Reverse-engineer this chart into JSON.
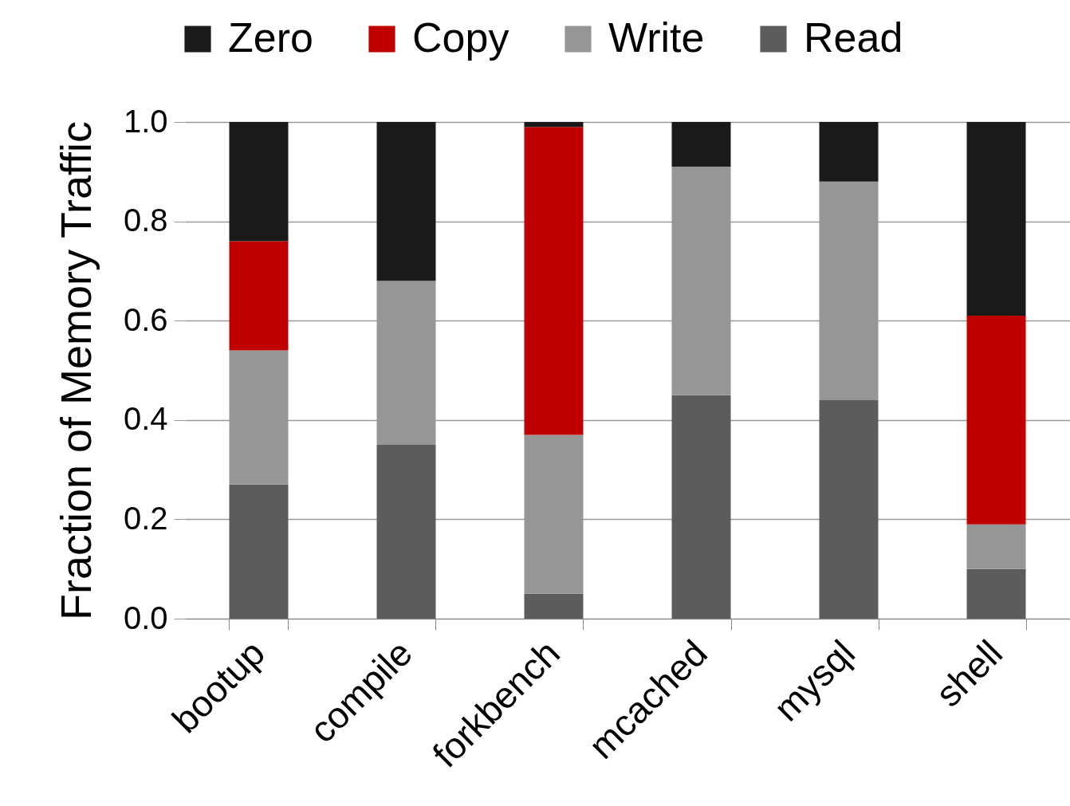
{
  "chart_data": {
    "type": "bar",
    "stacked": true,
    "ylabel": "Fraction of Memory Traffic",
    "categories": [
      "bootup",
      "compile",
      "forkbench",
      "mcached",
      "mysql",
      "shell"
    ],
    "series": [
      {
        "name": "Read",
        "color": "#5c5c5c",
        "values": [
          0.27,
          0.35,
          0.05,
          0.45,
          0.44,
          0.1
        ]
      },
      {
        "name": "Write",
        "color": "#969696",
        "values": [
          0.27,
          0.33,
          0.32,
          0.46,
          0.44,
          0.09
        ]
      },
      {
        "name": "Copy",
        "color": "#c00000",
        "values": [
          0.22,
          0,
          0.62,
          0,
          0,
          0.42
        ]
      },
      {
        "name": "Zero",
        "color": "#1a1a1a",
        "values": [
          0.24,
          0.32,
          0.01,
          0.09,
          0.12,
          0.39
        ]
      }
    ],
    "ylim": [
      0,
      1
    ],
    "yticks": [
      {
        "value": 0,
        "label": "0.0"
      },
      {
        "value": 0.2,
        "label": "0.2"
      },
      {
        "value": 0.4,
        "label": "0.4"
      },
      {
        "value": 0.6,
        "label": "0.6"
      },
      {
        "value": 0.8,
        "label": "0.8"
      },
      {
        "value": 1,
        "label": "1.0"
      }
    ],
    "grid": "y",
    "legend": "top"
  }
}
